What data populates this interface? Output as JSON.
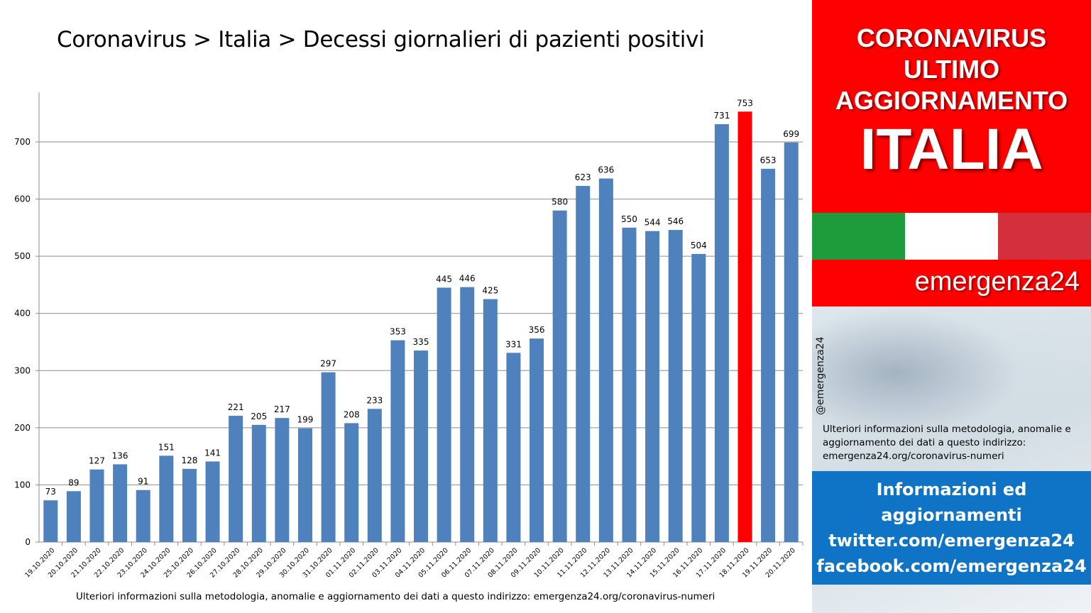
{
  "title": "Coronavirus > Italia > Decessi giornalieri di pazienti positivi",
  "footer_note": "Ulteriori informazioni sulla metodologia, anomalie e aggiornamento dei dati a questo indirizzo: emergenza24.org/coronavirus-numeri",
  "chart_data": {
    "type": "bar",
    "title": "Coronavirus > Italia > Decessi giornalieri di pazienti positivi",
    "xlabel": "",
    "ylabel": "",
    "ylim": [
      0,
      800
    ],
    "yticks": [
      0,
      100,
      200,
      300,
      400,
      500,
      600,
      700
    ],
    "grid": true,
    "categories": [
      "19.10.2020",
      "20.10.2020",
      "21.10.2020",
      "22.10.2020",
      "23.10.2020",
      "24.10.2020",
      "25.10.2020",
      "26.10.2020",
      "27.10.2020",
      "28.10.2020",
      "29.10.2020",
      "30.10.2020",
      "31.10.2020",
      "01.11.2020",
      "02.11.2020",
      "03.11.2020",
      "04.11.2020",
      "05.11.2020",
      "06.11.2020",
      "07.11.2020",
      "08.11.2020",
      "09.11.2020",
      "10.11.2020",
      "11.11.2020",
      "12.11.2020",
      "13.11.2020",
      "14.11.2020",
      "15.11.2020",
      "16.11.2020",
      "17.11.2020",
      "18.11.2020",
      "19.11.2020",
      "20.11.2020"
    ],
    "values": [
      73,
      89,
      127,
      136,
      91,
      151,
      128,
      141,
      221,
      205,
      217,
      199,
      297,
      208,
      233,
      353,
      335,
      445,
      446,
      425,
      331,
      356,
      580,
      623,
      636,
      550,
      544,
      546,
      504,
      731,
      753,
      653,
      699
    ],
    "bar_color": "#4f81bd",
    "highlight_color": "#ff0000",
    "highlight_index": 30
  },
  "panel": {
    "headline_1": "CORONAVIRUS",
    "headline_2": "ULTIMO",
    "headline_3": "AGGIORNAMENTO",
    "headline_4": "ITALIA",
    "brand": "emergenza24",
    "handle": "@emergenza24",
    "note": "Ulteriori informazioni sulla metodologia, anomalie e aggiornamento dei dati a questo indirizzo: emergenza24.org/coronavirus-numeri",
    "info_1": "Informazioni ed",
    "info_2": "aggiornamenti",
    "info_3": "twitter.com/emergenza24",
    "info_4": "facebook.com/emergenza24",
    "flag_colors": [
      "#1e9b3a",
      "#ffffff",
      "#d32f3c"
    ],
    "header_color": "#ff0000",
    "info_color": "#1074c6"
  }
}
